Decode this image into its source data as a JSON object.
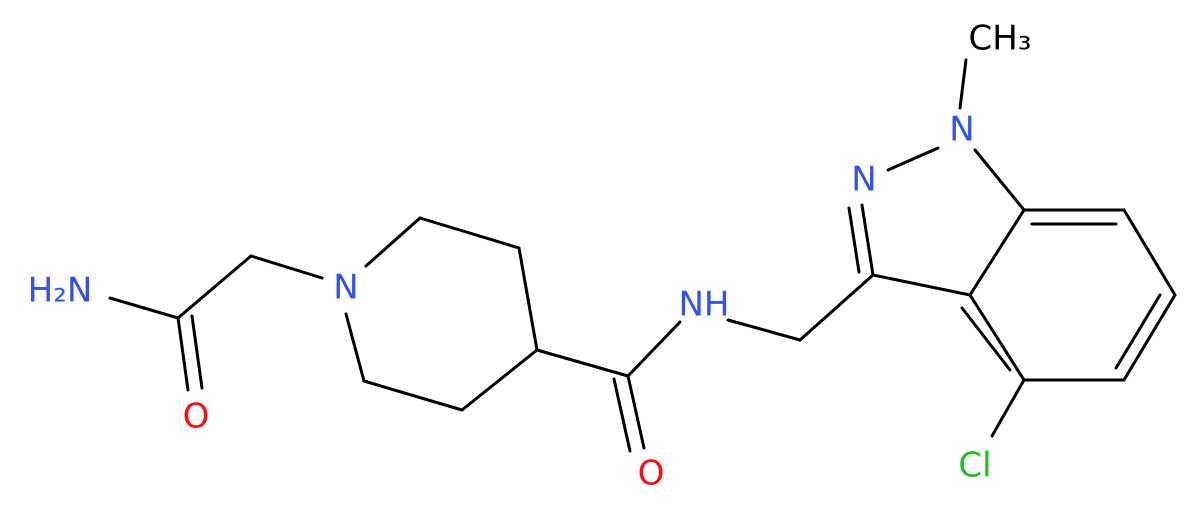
{
  "atoms": [
    {
      "label": "H₂N"
    },
    {
      "label": "O"
    },
    {
      "label": "N"
    },
    {
      "label": "O"
    },
    {
      "label": "NH"
    },
    {
      "label": "N"
    },
    {
      "label": "N"
    },
    {
      "label": "CH₃"
    },
    {
      "label": "Cl"
    }
  ]
}
